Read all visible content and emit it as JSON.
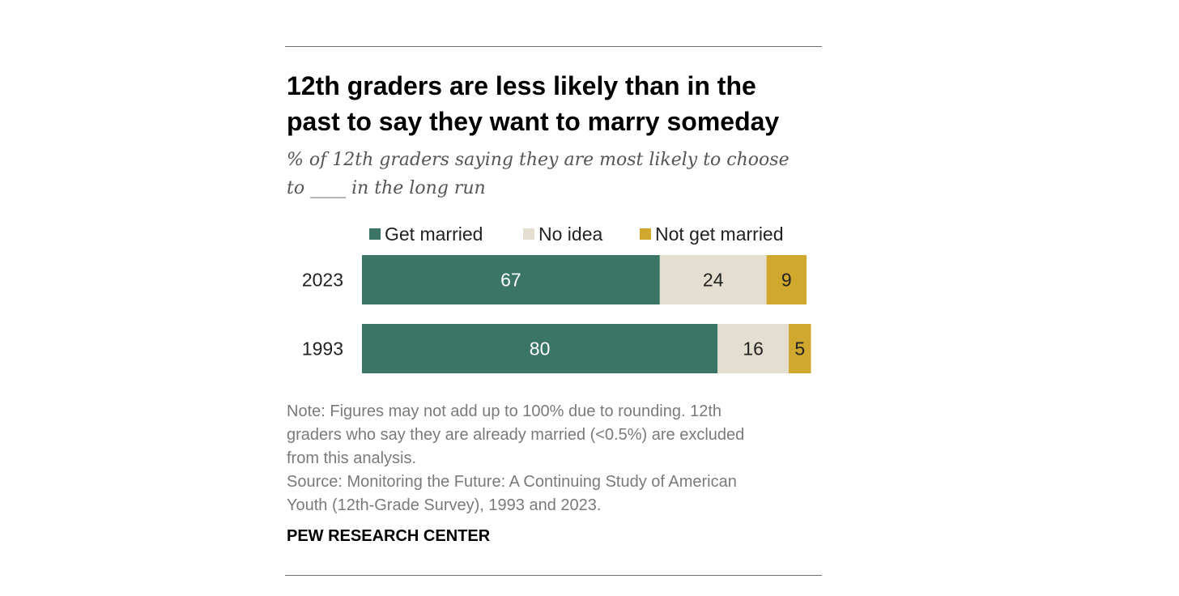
{
  "header": {
    "title_line1": "12th graders are less likely than in the",
    "title_line2": "past to say they want to marry someday",
    "subtitle_line1": "% of 12th graders saying they are most likely to choose",
    "subtitle_line2": "to ____ in the long run"
  },
  "chart_data": {
    "type": "bar",
    "orientation": "horizontal",
    "stacked": true,
    "title": "12th graders are less likely than in the past to say they want to marry someday",
    "subtitle": "% of 12th graders saying they are most likely to choose to ____ in the long run",
    "categories": [
      "2023",
      "1993"
    ],
    "series": [
      {
        "name": "Get married",
        "values": [
          67,
          80
        ],
        "color": "#3b7566",
        "label_color": "#ffffff"
      },
      {
        "name": "No idea",
        "values": [
          24,
          16
        ],
        "color": "#e3ded0",
        "label_color": "#222222"
      },
      {
        "name": "Not get married",
        "values": [
          9,
          5
        ],
        "color": "#d1a82e",
        "label_color": "#222222"
      }
    ],
    "xlim": [
      0,
      100
    ],
    "grid": false,
    "legend_position": "top"
  },
  "footer": {
    "note_lines": [
      "Note: Figures may not add up to 100% due to rounding. 12th",
      "graders who say they are already married (<0.5%) are excluded",
      "from this analysis."
    ],
    "source_lines": [
      "Source: Monitoring the Future: A Continuing Study of American",
      "Youth (12th-Grade Survey), 1993 and 2023."
    ],
    "brand": "PEW RESEARCH CENTER"
  }
}
